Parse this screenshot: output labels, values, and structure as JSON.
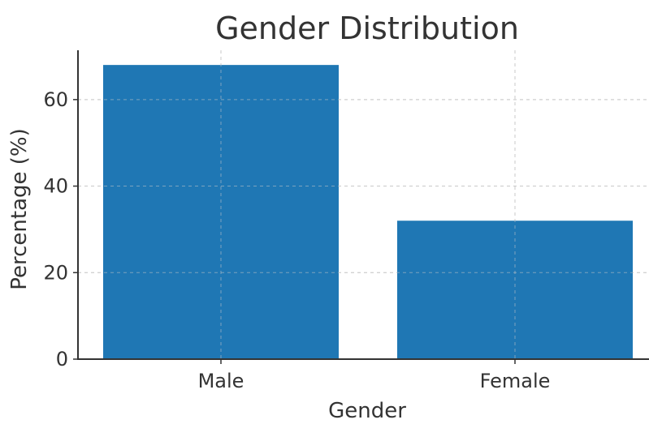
{
  "chart_data": {
    "type": "bar",
    "title": "Gender Distribution",
    "xlabel": "Gender",
    "ylabel": "Percentage (%)",
    "categories": [
      "Male",
      "Female"
    ],
    "values": [
      68,
      32
    ],
    "ylim": [
      0,
      71.4
    ],
    "yticks": [
      0,
      20,
      40,
      60
    ],
    "grid": true,
    "bar_color": "#1f77b4"
  }
}
